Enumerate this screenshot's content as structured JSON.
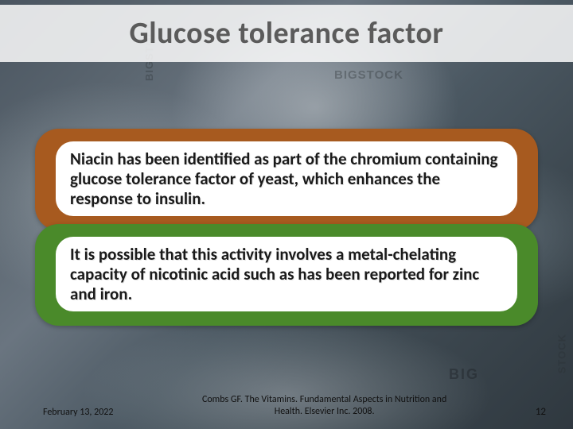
{
  "title": "Glucose tolerance factor",
  "watermarks": {
    "wm1": "BIGSTOCK",
    "wm2": "BIGSTOCK",
    "wm3": "STOCK",
    "wm4": "BIG"
  },
  "boxes": [
    {
      "text": "Niacin has been identified as part of the chromium containing glucose tolerance factor of yeast, which enhances the response to insulin.",
      "bg_color": "#a75a1f"
    },
    {
      "text": "It is possible that this activity involves a metal-chelating capacity of nicotinic acid such as has been reported for zinc and iron.",
      "bg_color": "#4a8a2a"
    }
  ],
  "footer": {
    "date": "February 13, 2022",
    "citation": "Combs GF. The Vitamins. Fundamental Aspects in Nutrition and Health. Elsevier Inc. 2008.",
    "page": "12"
  },
  "style": {
    "slide_width": 720,
    "slide_height": 540,
    "title_band_bg": "rgba(252,252,252,0.85)",
    "title_color": "#5b5b5b",
    "title_fontsize": 38,
    "body_fontsize": 21,
    "body_fontweight": 700,
    "body_color": "#1a1a1a",
    "inner_pill_bg": "#ffffff",
    "box_radius": 30,
    "inner_radius": 22,
    "footer_fontsize": 12,
    "background_gradient": "linear-gradient(135deg,#4a5560,#5b6670,#6a7580,#4b5862,#3d4850,#2f383f)"
  }
}
